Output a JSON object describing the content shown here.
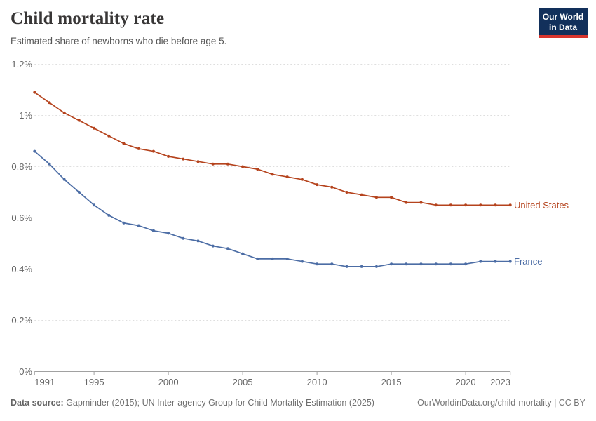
{
  "header": {
    "title": "Child mortality rate",
    "subtitle": "Estimated share of newborns who die before age 5.",
    "logo": {
      "line1": "Our World",
      "line2": "in Data",
      "bg": "#12305b",
      "stripe": "#d8352e"
    }
  },
  "chart_data": {
    "type": "line",
    "title": "Child mortality rate",
    "subtitle": "Estimated share of newborns who die before age 5.",
    "xlabel": "",
    "ylabel": "",
    "unit": "%",
    "xlim": [
      1991,
      2023
    ],
    "ylim": [
      0,
      1.2
    ],
    "grid": "horizontal-dashed",
    "legend": "end-of-line-labels",
    "x": [
      1991,
      1992,
      1993,
      1994,
      1995,
      1996,
      1997,
      1998,
      1999,
      2000,
      2001,
      2002,
      2003,
      2004,
      2005,
      2006,
      2007,
      2008,
      2009,
      2010,
      2011,
      2012,
      2013,
      2014,
      2015,
      2016,
      2017,
      2018,
      2019,
      2020,
      2021,
      2022,
      2023
    ],
    "xticks": [
      1991,
      1995,
      2000,
      2005,
      2010,
      2015,
      2020,
      2023
    ],
    "yticks": [
      {
        "v": 0,
        "label": "0%"
      },
      {
        "v": 0.2,
        "label": "0.2%"
      },
      {
        "v": 0.4,
        "label": "0.4%"
      },
      {
        "v": 0.6,
        "label": "0.6%"
      },
      {
        "v": 0.8,
        "label": "0.8%"
      },
      {
        "v": 1.0,
        "label": "1%"
      },
      {
        "v": 1.2,
        "label": "1.2%"
      }
    ],
    "series": [
      {
        "name": "United States",
        "color": "#b5431d",
        "values": [
          1.09,
          1.05,
          1.01,
          0.98,
          0.95,
          0.92,
          0.89,
          0.87,
          0.86,
          0.84,
          0.83,
          0.82,
          0.81,
          0.81,
          0.8,
          0.79,
          0.77,
          0.76,
          0.75,
          0.73,
          0.72,
          0.7,
          0.69,
          0.68,
          0.68,
          0.66,
          0.66,
          0.65,
          0.65,
          0.65,
          0.65,
          0.65,
          0.65
        ]
      },
      {
        "name": "France",
        "color": "#4c6da5",
        "values": [
          0.86,
          0.81,
          0.75,
          0.7,
          0.65,
          0.61,
          0.58,
          0.57,
          0.55,
          0.54,
          0.52,
          0.51,
          0.49,
          0.48,
          0.46,
          0.44,
          0.44,
          0.44,
          0.43,
          0.42,
          0.42,
          0.41,
          0.41,
          0.41,
          0.42,
          0.42,
          0.42,
          0.42,
          0.42,
          0.42,
          0.43,
          0.43,
          0.43
        ]
      }
    ],
    "axis_color": "#a1a1a1",
    "gridline_color": "#dedede",
    "tick_label_color": "#666666"
  },
  "footer": {
    "datasource_label": "Data source:",
    "datasource_text": " Gapminder (2015); UN Inter-agency Group for Child Mortality Estimation (2025)",
    "link_text": "OurWorldinData.org/child-mortality | CC BY"
  }
}
